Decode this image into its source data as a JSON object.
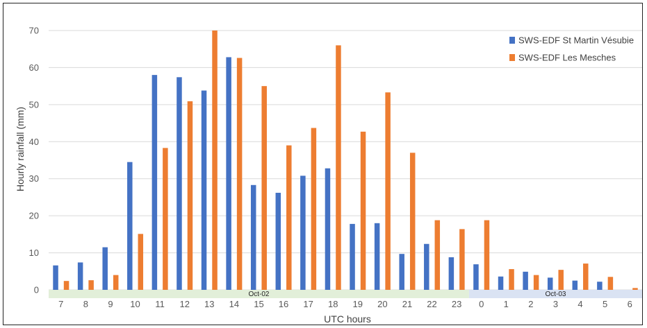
{
  "chart_data": {
    "type": "bar",
    "title": "",
    "xlabel": "UTC hours",
    "ylabel": "Hourly rainfall (mm)",
    "ylim": [
      0,
      70
    ],
    "yticks": [
      0,
      10,
      20,
      30,
      40,
      50,
      60,
      70
    ],
    "grid": true,
    "legend_position": "top-right",
    "categories": [
      "7",
      "8",
      "9",
      "10",
      "11",
      "12",
      "13",
      "14",
      "15",
      "16",
      "17",
      "18",
      "19",
      "20",
      "21",
      "22",
      "23",
      "0",
      "1",
      "2",
      "3",
      "4",
      "5",
      "6"
    ],
    "day_groups": [
      {
        "label": "Oct-02",
        "color": "#e2efd9",
        "start": 0,
        "end": 16
      },
      {
        "label": "Oct-03",
        "color": "#dae3f3",
        "start": 17,
        "end": 23
      }
    ],
    "series": [
      {
        "name": "SWS-EDF St Martin Vésubie",
        "color": "#4472c4",
        "values": [
          6.6,
          7.4,
          11.5,
          34.5,
          58.0,
          57.4,
          53.8,
          62.8,
          28.3,
          26.2,
          30.8,
          32.8,
          17.8,
          18.0,
          9.7,
          12.4,
          8.8,
          6.9,
          3.6,
          4.9,
          3.3,
          2.5,
          2.2,
          0.0
        ]
      },
      {
        "name": "SWS-EDF Les Mesches",
        "color": "#ed7d31",
        "values": [
          2.4,
          2.6,
          4.0,
          15.1,
          38.3,
          50.9,
          70.0,
          62.6,
          55.0,
          39.0,
          43.7,
          66.0,
          42.7,
          53.3,
          37.0,
          18.8,
          16.4,
          18.8,
          5.6,
          4.0,
          5.4,
          7.1,
          3.5,
          0.5
        ]
      }
    ]
  }
}
